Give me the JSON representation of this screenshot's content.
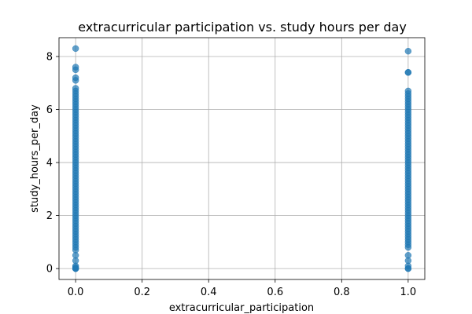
{
  "chart_data": {
    "type": "scatter",
    "title": "extracurricular participation vs. study hours per day",
    "xlabel": "extracurricular_participation",
    "ylabel": "study_hours_per_day",
    "xlim": [
      -0.05,
      1.05
    ],
    "ylim": [
      -0.41,
      8.71
    ],
    "xticks": [
      0.0,
      0.2,
      0.4,
      0.6,
      0.8,
      1.0
    ],
    "xtick_labels": [
      "0.0",
      "0.2",
      "0.4",
      "0.6",
      "0.8",
      "1.0"
    ],
    "yticks": [
      0,
      2,
      4,
      6,
      8
    ],
    "ytick_labels": [
      "0",
      "2",
      "4",
      "6",
      "8"
    ],
    "grid": true,
    "legend": "none",
    "marker_color": "#1f77b4",
    "marker_alpha": 0.7,
    "series": [
      {
        "x_value": 0,
        "y": [
          0.0,
          0.0,
          0.0,
          0.05,
          0.1,
          0.3,
          0.5,
          0.7,
          0.8,
          0.9,
          1.0,
          1.1,
          1.2,
          1.3,
          1.4,
          1.5,
          1.6,
          1.7,
          1.8,
          1.9,
          2.0,
          2.1,
          2.2,
          2.3,
          2.4,
          2.5,
          2.6,
          2.7,
          2.8,
          2.9,
          3.0,
          3.1,
          3.2,
          3.3,
          3.4,
          3.5,
          3.6,
          3.7,
          3.8,
          3.9,
          4.0,
          4.1,
          4.2,
          4.3,
          4.4,
          4.5,
          4.6,
          4.7,
          4.8,
          4.9,
          5.0,
          5.1,
          5.2,
          5.3,
          5.4,
          5.5,
          5.6,
          5.7,
          5.8,
          5.9,
          6.0,
          6.1,
          6.2,
          6.3,
          6.4,
          6.5,
          6.6,
          6.7,
          6.8,
          7.1,
          7.2,
          7.5,
          7.6,
          8.3
        ]
      },
      {
        "x_value": 1,
        "y": [
          0.0,
          0.0,
          0.1,
          0.3,
          0.5,
          0.8,
          0.9,
          1.0,
          1.1,
          1.2,
          1.3,
          1.4,
          1.5,
          1.6,
          1.7,
          1.8,
          1.9,
          2.0,
          2.1,
          2.2,
          2.3,
          2.4,
          2.5,
          2.6,
          2.7,
          2.8,
          2.9,
          3.0,
          3.1,
          3.2,
          3.3,
          3.4,
          3.5,
          3.6,
          3.7,
          3.8,
          3.9,
          4.0,
          4.1,
          4.2,
          4.3,
          4.4,
          4.5,
          4.6,
          4.7,
          4.8,
          4.9,
          5.0,
          5.1,
          5.2,
          5.3,
          5.4,
          5.5,
          5.6,
          5.7,
          5.8,
          5.9,
          6.0,
          6.1,
          6.2,
          6.3,
          6.4,
          6.5,
          6.6,
          6.7,
          7.4,
          7.4,
          8.2
        ]
      }
    ]
  }
}
